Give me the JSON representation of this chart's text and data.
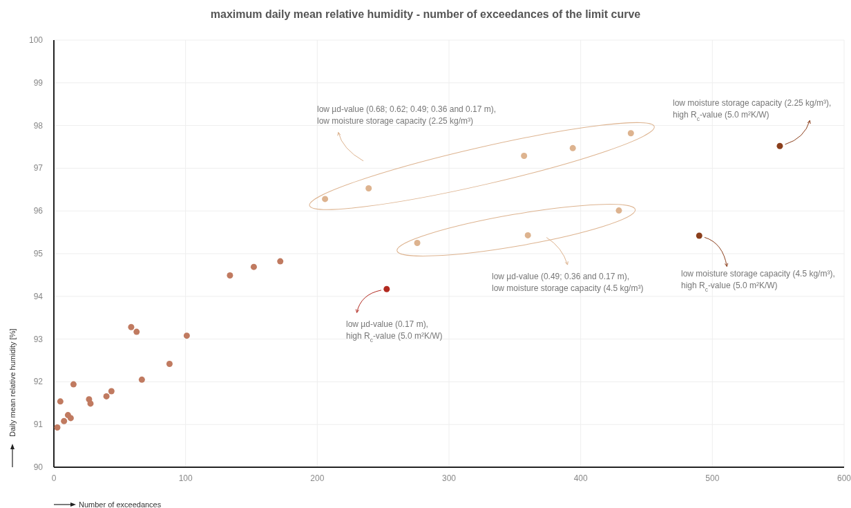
{
  "chart_data": {
    "type": "scatter",
    "title": "maximum daily mean relative humidity - number of exceedances of the limit curve",
    "xlabel": "Number of exceedances",
    "ylabel": "Daily mean relative humidity [%]",
    "xlim": [
      0,
      600
    ],
    "ylim": [
      90,
      100
    ],
    "xticks": [
      0,
      100,
      200,
      300,
      400,
      500,
      600
    ],
    "yticks": [
      90,
      91,
      92,
      93,
      94,
      95,
      96,
      97,
      98,
      99,
      100
    ],
    "grid": true,
    "marker": "circle",
    "series": [
      {
        "color": "#c07a60",
        "x": [
          2.6,
          4.9,
          7.7,
          10.7,
          12.8,
          14.9,
          26.7,
          27.8,
          39.9,
          43.7,
          58.7,
          62.8,
          66.8,
          87.8,
          100.9,
          133.7,
          151.8,
          171.9
        ],
        "values": [
          90.93,
          91.54,
          91.08,
          91.22,
          91.15,
          91.94,
          91.59,
          91.49,
          91.66,
          91.78,
          93.28,
          93.17,
          92.05,
          92.42,
          93.08,
          94.49,
          94.69,
          94.82
        ]
      },
      {
        "color": "#ddb38f",
        "x": [
          205.9,
          239,
          357,
          394,
          438.1,
          275.9,
          359.9,
          429
        ],
        "values": [
          96.28,
          96.53,
          97.29,
          97.47,
          97.82,
          95.25,
          95.43,
          96.01
        ]
      },
      {
        "color": "#b22a20",
        "x": [
          252.7
        ],
        "values": [
          94.17
        ]
      },
      {
        "color": "#8b3f1c",
        "x": [
          551.2,
          490
        ],
        "values": [
          97.52,
          95.42
        ]
      }
    ],
    "annotations": [
      "low µd-value (0.68; 0.62; 0.49; 0.36 and 0.17 m),\nlow moisture storage capacity (2.25 kg/m³)",
      "low µd-value (0.49; 0.36 and 0.17 m),\nlow moisture storage capacity (4.5 kg/m³)",
      {
        "text": "low µd-value (0.17 m),\nhigh R$_{c}$-value (5.0 m²K/W)",
        "x": 252.7,
        "y": 94.17
      },
      {
        "text": "low moisture storage capacity (2.25 kg/m³),\nhigh R$_{c}$-value (5.0 m²K/W)",
        "x": 551.2,
        "y": 97.52
      },
      {
        "text": "low moisture storage capacity (4.5 kg/m³),\nhigh R$_{c}$-value (5.0 m²K/W)",
        "x": 490,
        "y": 95.42
      }
    ]
  }
}
